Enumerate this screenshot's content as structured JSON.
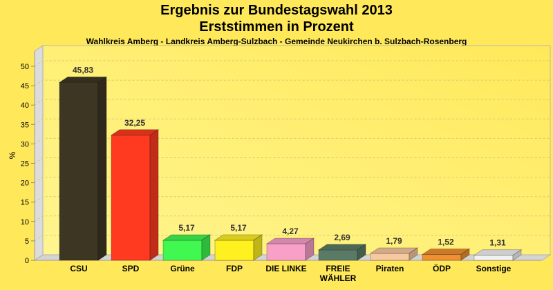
{
  "title": "Ergebnis zur Bundestagswahl 2013",
  "title2": "Erststimmen in Prozent",
  "subtitle": "Wahlkreis Amberg - Landkreis Amberg-Sulzbach - Gemeinde Neukirchen b. Sulzbach-Rosenberg",
  "chart_data": {
    "type": "bar",
    "title": "Ergebnis zur Bundestagswahl 2013 - Erststimmen in Prozent",
    "xlabel": "",
    "ylabel": "%",
    "ylim": [
      0,
      50
    ],
    "yticks": [
      0,
      5,
      10,
      15,
      20,
      25,
      30,
      35,
      40,
      45,
      50
    ],
    "grid": true,
    "categories": [
      "CSU",
      "SPD",
      "Grüne",
      "FDP",
      "DIE LINKE",
      "FREIE WÄHLER",
      "Piraten",
      "ÖDP",
      "Sonstige"
    ],
    "category_lines": [
      [
        "CSU"
      ],
      [
        "SPD"
      ],
      [
        "Grüne"
      ],
      [
        "FDP"
      ],
      [
        "DIE LINKE"
      ],
      [
        "FREIE",
        "WÄHLER"
      ],
      [
        "Piraten"
      ],
      [
        "ÖDP"
      ],
      [
        "Sonstige"
      ]
    ],
    "values": [
      45.83,
      32.25,
      5.17,
      5.17,
      4.27,
      2.69,
      1.79,
      1.52,
      1.31
    ],
    "value_labels": [
      "45,83",
      "32,25",
      "5,17",
      "5,17",
      "4,27",
      "2,69",
      "1,79",
      "1,52",
      "1,31"
    ],
    "colors": [
      "#3d3623",
      "#ff3a20",
      "#40f850",
      "#fff020",
      "#f8a0c8",
      "#5a7a66",
      "#f8c8a0",
      "#f09030",
      "#f2f2f2"
    ]
  }
}
